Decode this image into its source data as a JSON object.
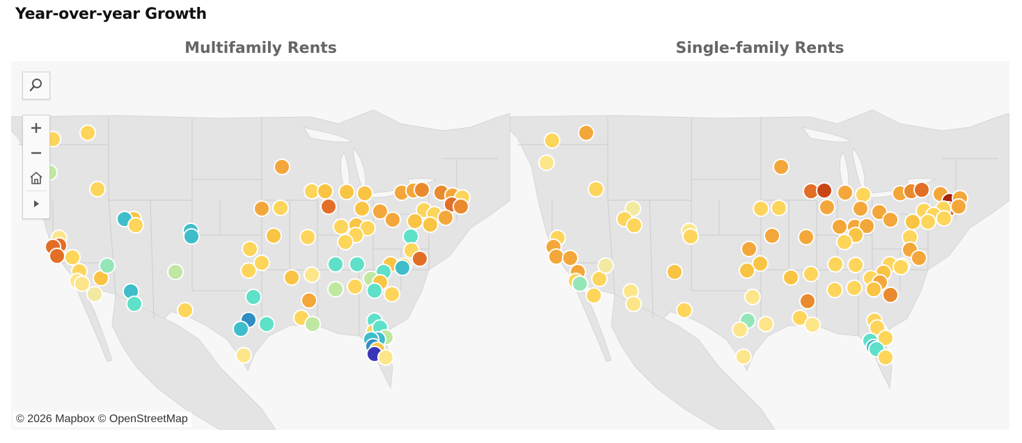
{
  "title": "Year-over-year Growth",
  "panels": [
    {
      "title": "Multifamily Rents"
    },
    {
      "title": "Single-family Rents"
    }
  ],
  "toolbar": {
    "search_icon": "magnifier-icon",
    "zoom_in": "plus-icon",
    "zoom_out": "minus-icon",
    "home": "home-icon",
    "expand": "play-icon"
  },
  "attribution": "© 2026 Mapbox  © OpenStreetMap",
  "palette": {
    "background": "#f1f1f1",
    "land": "#e4e4e4",
    "water": "#f7f7f7",
    "border": "#cccccc",
    "marker_stroke": "#ffffff"
  }
}
